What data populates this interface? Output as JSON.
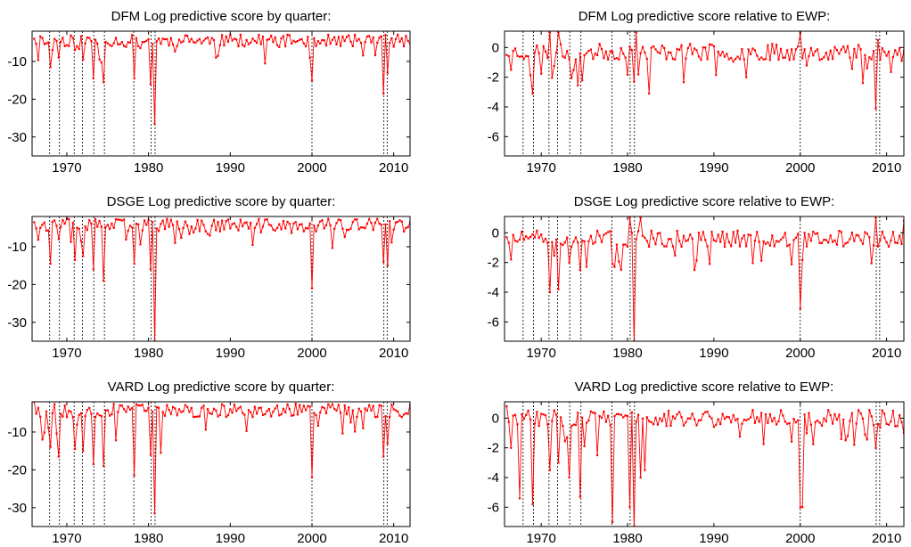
{
  "chart_data": [
    {
      "type": "line",
      "title": "DFM Log predictive score by quarter:",
      "xlim": [
        1965.75,
        2012.0
      ],
      "ylim": [
        -35,
        -2
      ],
      "xticks": [
        1970,
        1980,
        1990,
        2000,
        2010
      ],
      "yticks": [
        -10,
        -20,
        -30
      ],
      "recession_lines": [
        1967.9,
        1969.1,
        1970.9,
        1971.9,
        1973.3,
        1974.6,
        1978.2,
        1980.3,
        1980.8,
        2000.0,
        2008.8,
        2009.2
      ],
      "series": [
        {
          "color": "#ff0000",
          "baseline": -4.5,
          "noise": 1.6,
          "seed": 11,
          "x": [
            1966.0,
            1967.9,
            1968.2,
            1969.1,
            1970.9,
            1971.9,
            1973.3,
            1974.6,
            1978.2,
            1979.0,
            1980.3,
            1980.8,
            1984.0,
            1988.6,
            2000.0,
            2003.1,
            2008.8,
            2009.2
          ],
          "y": [
            -4.0,
            -11.5,
            -7.0,
            -9.0,
            -7.0,
            -9.5,
            -14.5,
            -15.5,
            -14.5,
            -6.5,
            -16.0,
            -26.5,
            -5.0,
            -8.5,
            -15.0,
            -5.5,
            -18.5,
            -13.0
          ]
        }
      ]
    },
    {
      "type": "line",
      "title": "DFM Log predictive score relative to EWP:",
      "xlim": [
        1965.75,
        2012.0
      ],
      "ylim": [
        -7.3,
        1.1
      ],
      "xticks": [
        1970,
        1980,
        1990,
        2000,
        2010
      ],
      "yticks": [
        0,
        -2,
        -4,
        -6
      ],
      "recession_lines": [
        1967.9,
        1969.1,
        1970.9,
        1971.9,
        1973.3,
        1974.6,
        1978.2,
        1980.3,
        1980.8,
        2000.0,
        2008.8,
        2009.2
      ],
      "series": [
        {
          "color": "#ff0000",
          "baseline": -0.3,
          "noise": 0.55,
          "seed": 23,
          "x": [
            1966.0,
            1966.5,
            1969.1,
            1971.0,
            1972.0,
            1980.8,
            1981.0,
            1982.4,
            1993.7,
            2000.0,
            2008.8,
            2009.0,
            2011.8
          ],
          "y": [
            -0.5,
            -1.5,
            -3.1,
            1.0,
            1.0,
            -2.3,
            1.0,
            -3.1,
            -2.0,
            1.0,
            -4.1,
            0.5,
            -0.9
          ]
        }
      ]
    },
    {
      "type": "line",
      "title": "DSGE Log predictive score by quarter:",
      "xlim": [
        1965.75,
        2012.0
      ],
      "ylim": [
        -35,
        -2
      ],
      "xticks": [
        1970,
        1980,
        1990,
        2000,
        2010
      ],
      "yticks": [
        -10,
        -20,
        -30
      ],
      "recession_lines": [
        1967.9,
        1969.1,
        1970.9,
        1971.9,
        1973.3,
        1974.6,
        1978.2,
        1980.3,
        1980.8,
        2000.0,
        2008.8,
        2009.2
      ],
      "series": [
        {
          "color": "#ff0000",
          "baseline": -4.3,
          "noise": 1.7,
          "seed": 37,
          "x": [
            1966.0,
            1967.9,
            1969.1,
            1970.9,
            1971.9,
            1973.3,
            1974.6,
            1978.2,
            1980.3,
            1980.8,
            1983.2,
            2000.0,
            2008.8,
            2009.2,
            2011.9
          ],
          "y": [
            -3.5,
            -14.5,
            -8.0,
            -13.5,
            -12.5,
            -16.0,
            -19.0,
            -14.5,
            -16.0,
            -35.0,
            -9.0,
            -21.0,
            -14.0,
            -15.0,
            -3.5
          ]
        }
      ]
    },
    {
      "type": "line",
      "title": "DSGE Log predictive score relative to EWP:",
      "xlim": [
        1965.75,
        2012.0
      ],
      "ylim": [
        -7.3,
        1.1
      ],
      "xticks": [
        1970,
        1980,
        1990,
        2000,
        2010
      ],
      "yticks": [
        0,
        -2,
        -4,
        -6
      ],
      "recession_lines": [
        1967.9,
        1969.1,
        1970.9,
        1971.9,
        1973.3,
        1974.6,
        1978.2,
        1980.3,
        1980.8,
        2000.0,
        2008.8,
        2009.2
      ],
      "series": [
        {
          "color": "#ff0000",
          "baseline": -0.4,
          "noise": 0.55,
          "seed": 51,
          "x": [
            1966.0,
            1966.6,
            1970.9,
            1971.9,
            1973.3,
            1974.6,
            1978.2,
            1980.3,
            1980.8,
            1981.5,
            1987.8,
            2000.0,
            2008.8,
            2009.2,
            2011.9
          ],
          "y": [
            -0.3,
            -1.8,
            -4.0,
            -3.8,
            -2.0,
            -2.5,
            -2.1,
            1.0,
            -7.3,
            1.0,
            -2.5,
            -5.1,
            1.0,
            -0.5,
            0.8
          ]
        }
      ]
    },
    {
      "type": "line",
      "title": "VARD Log predictive score by quarter:",
      "xlim": [
        1965.75,
        2012.0
      ],
      "ylim": [
        -35,
        -2
      ],
      "xticks": [
        1970,
        1980,
        1990,
        2000,
        2010
      ],
      "yticks": [
        -10,
        -20,
        -30
      ],
      "recession_lines": [
        1967.9,
        1969.1,
        1970.9,
        1971.9,
        1973.3,
        1974.6,
        1978.2,
        1980.3,
        1980.8,
        2000.0,
        2008.8,
        2009.2
      ],
      "series": [
        {
          "color": "#ff0000",
          "baseline": -4.3,
          "noise": 1.8,
          "seed": 67,
          "x": [
            1966.0,
            1967.1,
            1967.9,
            1969.1,
            1970.9,
            1971.9,
            1973.3,
            1974.6,
            1978.2,
            1980.3,
            1980.8,
            1981.6,
            2000.0,
            2006.3,
            2008.8,
            2009.2
          ],
          "y": [
            -2.0,
            -12.0,
            -14.0,
            -16.5,
            -14.5,
            -15.0,
            -18.5,
            -19.0,
            -21.5,
            -16.0,
            -31.5,
            -15.5,
            -22.0,
            -9.0,
            -16.5,
            -13.0
          ]
        }
      ]
    },
    {
      "type": "line",
      "title": "VARD Log predictive score relative to EWP:",
      "xlim": [
        1965.75,
        2012.0
      ],
      "ylim": [
        -7.3,
        1.1
      ],
      "xticks": [
        1970,
        1980,
        1990,
        2000,
        2010
      ],
      "yticks": [
        0,
        -2,
        -4,
        -6
      ],
      "recession_lines": [
        1967.9,
        1969.1,
        1970.9,
        1971.9,
        1973.3,
        1974.6,
        1978.2,
        1980.3,
        1980.8,
        2000.0,
        2008.8,
        2009.2
      ],
      "series": [
        {
          "color": "#ff0000",
          "baseline": 0.0,
          "noise": 0.55,
          "seed": 83,
          "x": [
            1966.0,
            1966.6,
            1967.4,
            1968.9,
            1970.9,
            1972.0,
            1973.3,
            1974.6,
            1976.6,
            1978.2,
            1980.3,
            1980.8,
            1981.4,
            1982.0,
            2000.0,
            2000.3,
            2006.3,
            2008.8,
            2011.9
          ],
          "y": [
            0.8,
            -2.0,
            -5.4,
            -5.8,
            -3.5,
            -3.0,
            -4.0,
            -5.3,
            -2.5,
            -7.0,
            -6.0,
            -7.3,
            -4.0,
            -3.5,
            -6.0,
            -6.0,
            -1.8,
            -2.0,
            -1.0
          ]
        }
      ]
    }
  ]
}
